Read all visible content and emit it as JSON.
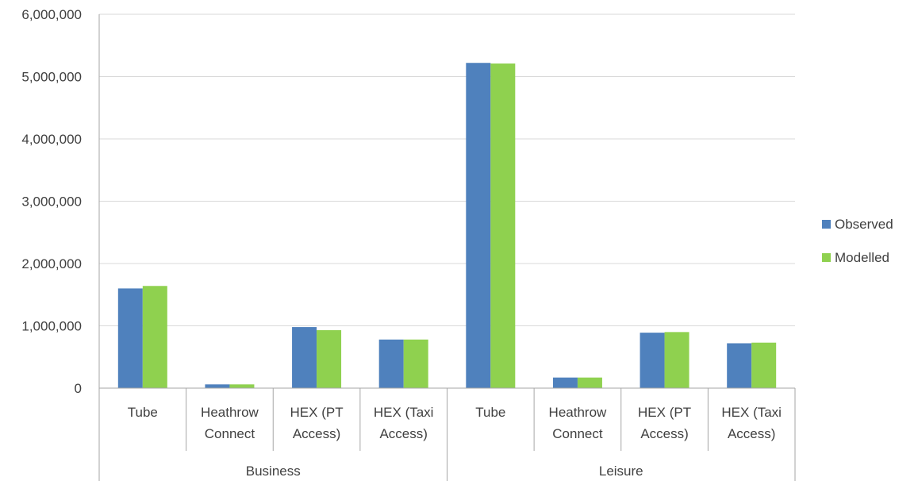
{
  "chart_data": {
    "type": "bar",
    "title": "",
    "xlabel": "",
    "ylabel": "",
    "ylim": [
      0,
      6000000
    ],
    "yticks": [
      0,
      1000000,
      2000000,
      3000000,
      4000000,
      5000000,
      6000000
    ],
    "ytick_labels": [
      "0",
      "1,000,000",
      "2,000,000",
      "3,000,000",
      "4,000,000",
      "5,000,000",
      "6,000,000"
    ],
    "grid": true,
    "legend_position": "right",
    "groups": [
      {
        "label": "Business",
        "categories": [
          "Tube",
          "Heathrow Connect",
          "HEX (PT Access)",
          "HEX (Taxi Access)"
        ]
      },
      {
        "label": "Leisure",
        "categories": [
          "Tube",
          "Heathrow Connect",
          "HEX (PT Access)",
          "HEX (Taxi Access)"
        ]
      }
    ],
    "category_label_lines": [
      [
        "Tube"
      ],
      [
        "Heathrow",
        "Connect"
      ],
      [
        "HEX (PT",
        "Access)"
      ],
      [
        "HEX (Taxi",
        "Access)"
      ],
      [
        "Tube"
      ],
      [
        "Heathrow",
        "Connect"
      ],
      [
        "HEX (PT",
        "Access)"
      ],
      [
        "HEX (Taxi",
        "Access)"
      ]
    ],
    "series": [
      {
        "name": "Observed",
        "color": "#4f81bd",
        "values": [
          1600000,
          60000,
          980000,
          780000,
          5220000,
          170000,
          890000,
          720000
        ]
      },
      {
        "name": "Modelled",
        "color": "#8fd14f",
        "values": [
          1640000,
          60000,
          930000,
          780000,
          5210000,
          170000,
          900000,
          730000
        ]
      }
    ]
  }
}
